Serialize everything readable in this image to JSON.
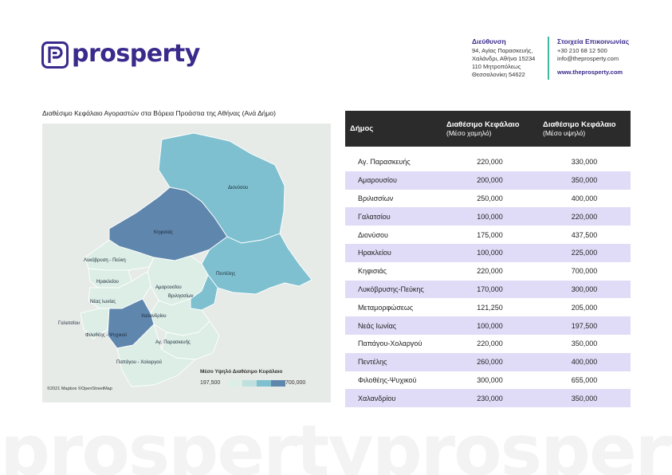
{
  "brand": {
    "name": "prosperty",
    "color": "#3a2a8c",
    "accent": "#3fb8a0"
  },
  "address": {
    "heading": "Διεύθυνση",
    "lines": [
      "94, Αγίας Παρασκευής,",
      "Χαλάνδρι, Αθήνα 15234",
      "110 Μητροπόλεως",
      "Θεσσαλονίκη 54622"
    ]
  },
  "contact": {
    "heading": "Στοιχεία Επικοινωνίας",
    "phone": "+30 210 68 12 500",
    "email": "info@theprosperty.com",
    "website": "www.theprosperty.com"
  },
  "map": {
    "title": "Διαθέσιμο Κεφάλαιο Αγοραστών στα Βόρεια Προάστια της Αθήνας (Ανά Δήμο)",
    "attribution": "©2021 Mapbox ©OpenStreetMap",
    "legend": {
      "title": "Μέσο Υψηλό Διαθέσιμο Κεφάλαιο",
      "min": "197,500",
      "max": "700,000",
      "colors": [
        "#dceee6",
        "#bfe0dc",
        "#7ec0cf",
        "#5f86ad"
      ]
    },
    "labels": {
      "dionysos": "Διονύσου",
      "kifisia": "Κηφισιάς",
      "lykovrysi": "Λυκόβρυση - Πεύκη",
      "irakleio": "Ηρακλείου",
      "amarousio": "Αμαρουσίου",
      "penteli": "Πεντέλης",
      "nea_ionia": "Νέας Ιωνίας",
      "vrilissia": "Βριλησσίων",
      "chalandri": "Χαλανδρίου",
      "galatsi": "Γαλατσίου",
      "filothei": "Φιλοθέης - Ψυχικού",
      "ag_paraskevi": "Αγ. Παρασκευής",
      "papagou": "Παπάγου - Χολαργού"
    }
  },
  "table": {
    "headers": {
      "dimos": "Δήμος",
      "low": "Διαθέσιμο Κεφάλαιο",
      "low_sub": "(Μέσο χαμηλό)",
      "high": "Διαθέσιμο Κεφάλαιο",
      "high_sub": "(Μέσο υψηλό)"
    },
    "rows": [
      {
        "dimos": "Αγ. Παρασκευής",
        "low": "220,000",
        "high": "330,000"
      },
      {
        "dimos": "Αμαρουσίου",
        "low": "200,000",
        "high": "350,000"
      },
      {
        "dimos": "Βριλισσίων",
        "low": "250,000",
        "high": "400,000"
      },
      {
        "dimos": "Γαλατσίου",
        "low": "100,000",
        "high": "220,000"
      },
      {
        "dimos": "Διονύσου",
        "low": "175,000",
        "high": "437,500"
      },
      {
        "dimos": "Ηρακλείου",
        "low": "100,000",
        "high": "225,000"
      },
      {
        "dimos": "Κηφισιάς",
        "low": "220,000",
        "high": "700,000"
      },
      {
        "dimos": "Λυκόβρυσης-Πεύκης",
        "low": "170,000",
        "high": "300,000"
      },
      {
        "dimos": "Μεταμορφώσεως",
        "low": "121,250",
        "high": "205,000"
      },
      {
        "dimos": "Νεάς Ιωνίας",
        "low": "100,000",
        "high": "197,500"
      },
      {
        "dimos": "Παπάγου-Χολαργού",
        "low": "220,000",
        "high": "350,000"
      },
      {
        "dimos": "Πεντέλης",
        "low": "260,000",
        "high": "400,000"
      },
      {
        "dimos": "Φιλοθέης-Ψυχικού",
        "low": "300,000",
        "high": "655,000"
      },
      {
        "dimos": "Χαλανδρίου",
        "low": "230,000",
        "high": "350,000"
      }
    ]
  },
  "watermark": "prospertyprosperty"
}
